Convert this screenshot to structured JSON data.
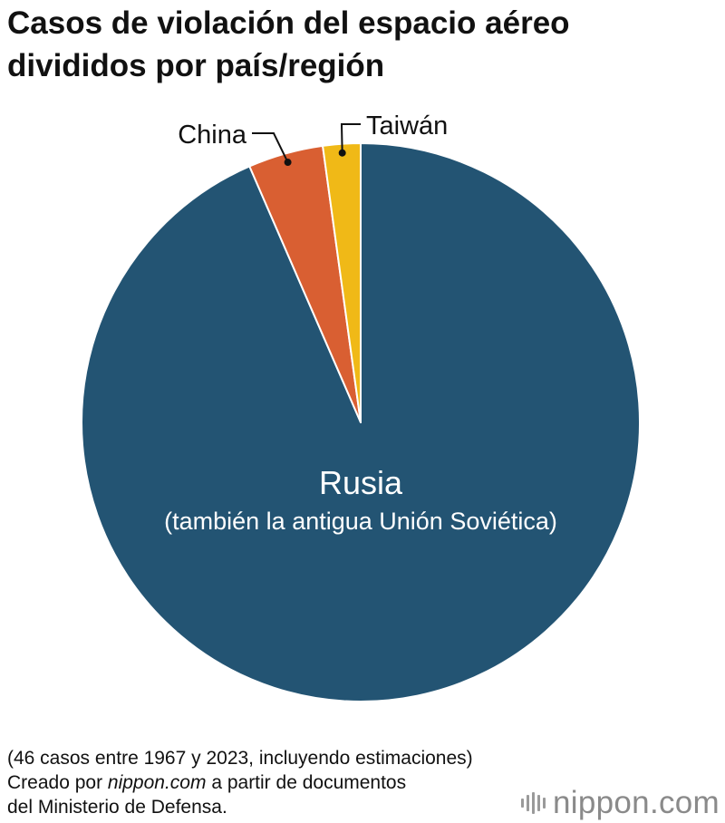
{
  "title": {
    "line1": "Casos de violación del espacio aéreo",
    "line2": "divididos por país/región"
  },
  "chart_data": {
    "type": "pie",
    "slices": [
      {
        "label": "Rusia",
        "sublabel": "(también la antigua Unión Soviética)",
        "value": 43,
        "color": "#235473"
      },
      {
        "label": "China",
        "value": 2,
        "color": "#d95f32"
      },
      {
        "label": "Taiwán",
        "value": 1,
        "color": "#f0b917"
      }
    ],
    "total": 46
  },
  "footnote": {
    "line1": "(46 casos entre 1967 y 2023, incluyendo estimaciones)",
    "line2_prefix": "Creado por ",
    "line2_source": "nippon.com",
    "line2_suffix": " a partir de documentos",
    "line3": "del Ministerio de Defensa."
  },
  "logo": {
    "text": "nippon",
    "suffix": ".com"
  }
}
